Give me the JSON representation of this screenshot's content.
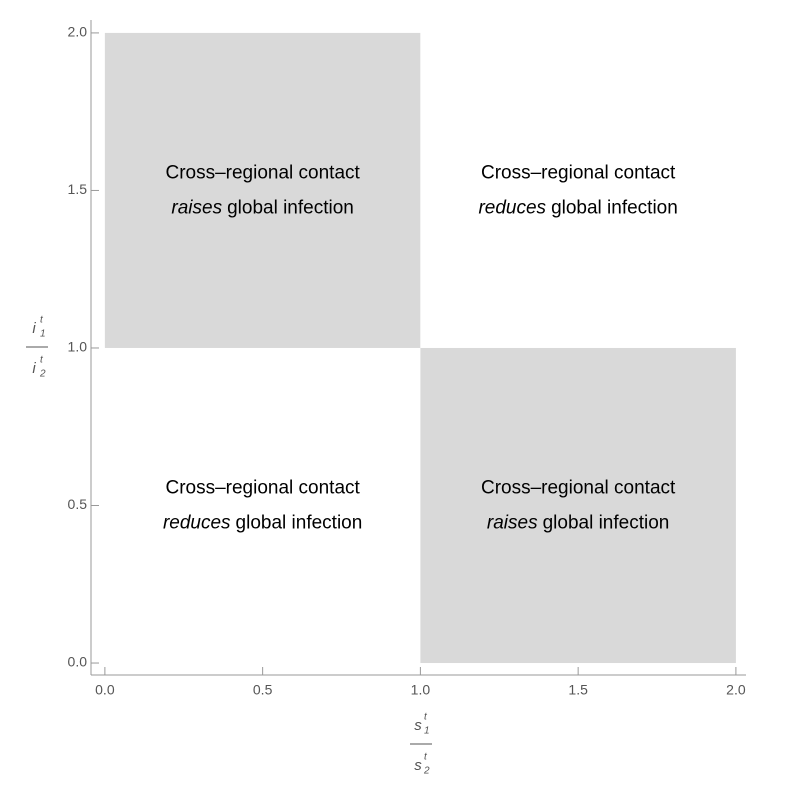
{
  "chart_data": {
    "type": "region",
    "xlim": [
      -0.044,
      2.032
    ],
    "ylim": [
      -0.038,
      2.041
    ],
    "xticks": [
      {
        "value": 0,
        "label": "0.0"
      },
      0.5,
      {
        "value": 1,
        "label": "1.0"
      },
      1.5,
      {
        "value": 2,
        "label": "2.0"
      }
    ],
    "yticks": [
      {
        "value": 0,
        "label": "0.0"
      },
      0.5,
      {
        "value": 1,
        "label": "1.0"
      },
      1.5,
      {
        "value": 2,
        "label": "2.0"
      }
    ],
    "xlabel": {
      "numerator": {
        "base": "s",
        "sup": "t",
        "sub": "1"
      },
      "denominator": {
        "base": "s",
        "sup": "t",
        "sub": "2"
      }
    },
    "ylabel": {
      "numerator": {
        "base": "i",
        "sup": "t",
        "sub": "1"
      },
      "denominator": {
        "base": "i",
        "sup": "t",
        "sub": "2"
      }
    },
    "regions": [
      {
        "x": [
          0,
          1
        ],
        "y": [
          1,
          2
        ],
        "color": "#d9d9d9",
        "line1": "Cross–regional contact",
        "emphasis": "raises",
        "rest": "global infection"
      },
      {
        "x": [
          1,
          2
        ],
        "y": [
          1,
          2
        ],
        "color": "#ffffff",
        "line1": "Cross–regional contact",
        "emphasis": "reduces",
        "rest": "global infection"
      },
      {
        "x": [
          0,
          1
        ],
        "y": [
          0,
          1
        ],
        "color": "#ffffff",
        "line1": "Cross–regional contact",
        "emphasis": "reduces",
        "rest": "global infection"
      },
      {
        "x": [
          1,
          2
        ],
        "y": [
          0,
          1
        ],
        "color": "#d9d9d9",
        "line1": "Cross–regional contact",
        "emphasis": "raises",
        "rest": "global infection"
      }
    ]
  }
}
